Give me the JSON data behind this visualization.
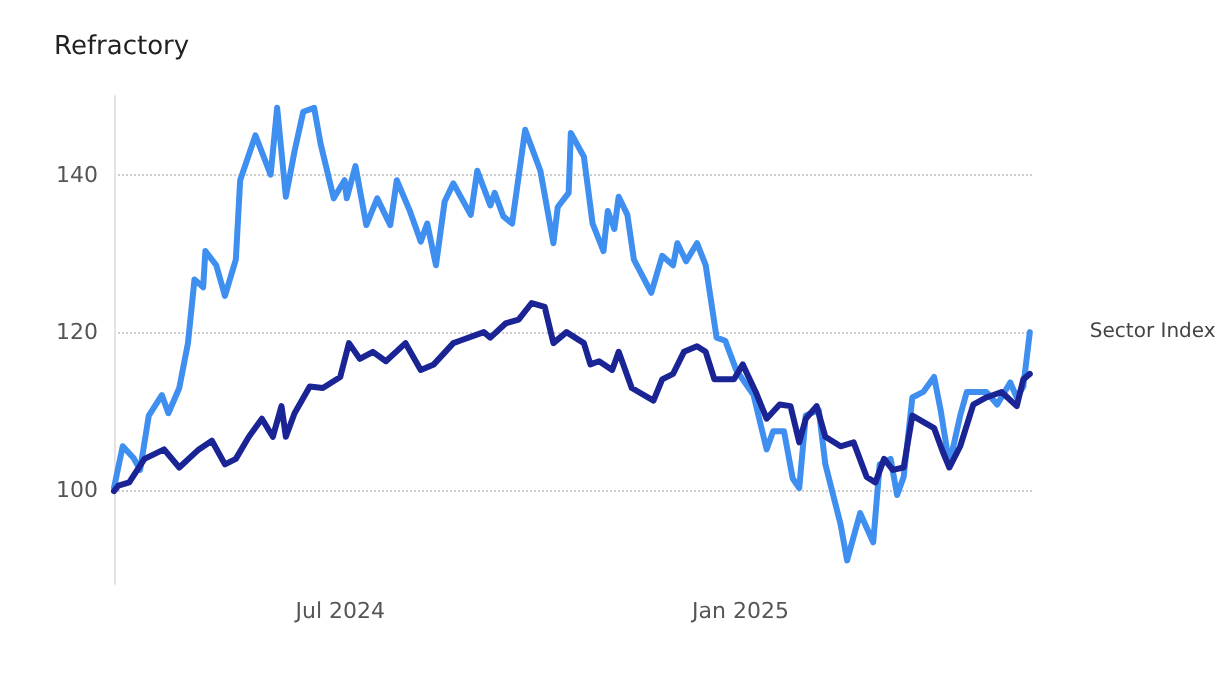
{
  "chart_data": {
    "type": "line",
    "title": "Refractory",
    "legend": false,
    "grid": "y",
    "line_style": "solid",
    "marker": "none",
    "xlim": [
      "2024-03-19",
      "2025-05-15"
    ],
    "xticks": [
      {
        "value": "2024-07-01",
        "label": "Jul 2024"
      },
      {
        "value": "2025-01-01",
        "label": "Jan 2025"
      }
    ],
    "ylim": [
      88,
      150
    ],
    "yticks": [
      100,
      120,
      140
    ],
    "series": [
      {
        "name": "Sector Index",
        "color": "#3f8ff0",
        "x": [
          "2024-03-19",
          "2024-03-23",
          "2024-03-28",
          "2024-03-31",
          "2024-04-04",
          "2024-04-10",
          "2024-04-13",
          "2024-04-18",
          "2024-04-22",
          "2024-04-25",
          "2024-04-29",
          "2024-04-30",
          "2024-05-05",
          "2024-05-09",
          "2024-05-14",
          "2024-05-16",
          "2024-05-23",
          "2024-05-30",
          "2024-06-02",
          "2024-06-06",
          "2024-06-10",
          "2024-06-14",
          "2024-06-19",
          "2024-06-22",
          "2024-06-28",
          "2024-07-03",
          "2024-07-04",
          "2024-07-08",
          "2024-07-13",
          "2024-07-18",
          "2024-07-24",
          "2024-07-27",
          "2024-08-02",
          "2024-08-07",
          "2024-08-10",
          "2024-08-14",
          "2024-08-18",
          "2024-08-22",
          "2024-08-30",
          "2024-09-02",
          "2024-09-08",
          "2024-09-10",
          "2024-09-14",
          "2024-09-18",
          "2024-09-24",
          "2024-10-01",
          "2024-10-07",
          "2024-10-09",
          "2024-10-14",
          "2024-10-15",
          "2024-10-21",
          "2024-10-25",
          "2024-10-30",
          "2024-11-01",
          "2024-11-04",
          "2024-11-06",
          "2024-11-10",
          "2024-11-13",
          "2024-11-21",
          "2024-11-26",
          "2024-12-01",
          "2024-12-03",
          "2024-12-07",
          "2024-12-12",
          "2024-12-16",
          "2024-12-21",
          "2024-12-25",
          "2024-12-30",
          "2025-01-07",
          "2025-01-13",
          "2025-01-16",
          "2025-01-21",
          "2025-01-25",
          "2025-01-28",
          "2025-01-31",
          "2025-02-06",
          "2025-02-09",
          "2025-02-16",
          "2025-02-19",
          "2025-02-25",
          "2025-03-03",
          "2025-03-06",
          "2025-03-11",
          "2025-03-14",
          "2025-03-17",
          "2025-03-21",
          "2025-03-26",
          "2025-03-31",
          "2025-04-03",
          "2025-04-07",
          "2025-04-12",
          "2025-04-15",
          "2025-04-24",
          "2025-04-29",
          "2025-05-05",
          "2025-05-08",
          "2025-05-11",
          "2025-05-14"
        ],
        "values": [
          100.2,
          105.5,
          104,
          102.5,
          109.4,
          112,
          109.7,
          112.9,
          118.6,
          126.7,
          125.7,
          130.3,
          128.5,
          124.6,
          129.2,
          139.3,
          145,
          140,
          148.5,
          137.2,
          143,
          148,
          148.5,
          143.9,
          137,
          139.3,
          137,
          141.1,
          133.6,
          137,
          133.6,
          139.3,
          135.4,
          131.5,
          133.8,
          128.5,
          136.6,
          138.9,
          134.9,
          140.5,
          136.1,
          137.7,
          134.7,
          133.8,
          145.7,
          140.5,
          131.3,
          135.9,
          137.7,
          145.3,
          142.3,
          133.8,
          130.3,
          135.4,
          133.1,
          137.2,
          134.9,
          129.2,
          125,
          129.7,
          128.5,
          131.3,
          129,
          131.3,
          128.5,
          119.3,
          118.9,
          115.2,
          112,
          105.1,
          107.4,
          107.4,
          101.4,
          100.2,
          109.4,
          110.1,
          103.2,
          95.6,
          91,
          97,
          93.3,
          103.2,
          103.9,
          99.3,
          101.6,
          111.7,
          112.4,
          114.3,
          110.1,
          103.2,
          109.4,
          112.4,
          112.4,
          110.8,
          113.6,
          111.7,
          113.1,
          120
        ]
      },
      {
        "color": "#1a2494",
        "x": [
          "2024-03-19",
          "2024-03-21",
          "2024-03-26",
          "2024-04-02",
          "2024-04-11",
          "2024-04-18",
          "2024-04-27",
          "2024-05-03",
          "2024-05-09",
          "2024-05-14",
          "2024-05-20",
          "2024-05-26",
          "2024-05-31",
          "2024-06-04",
          "2024-06-06",
          "2024-06-10",
          "2024-06-17",
          "2024-06-23",
          "2024-07-01",
          "2024-07-05",
          "2024-07-10",
          "2024-07-16",
          "2024-07-22",
          "2024-07-31",
          "2024-08-07",
          "2024-08-13",
          "2024-08-22",
          "2024-08-25",
          "2024-09-05",
          "2024-09-08",
          "2024-09-15",
          "2024-09-21",
          "2024-09-27",
          "2024-10-03",
          "2024-10-07",
          "2024-10-13",
          "2024-10-21",
          "2024-10-24",
          "2024-10-28",
          "2024-11-03",
          "2024-11-06",
          "2024-11-12",
          "2024-11-22",
          "2024-11-26",
          "2024-12-01",
          "2024-12-06",
          "2024-12-12",
          "2024-12-16",
          "2024-12-20",
          "2024-12-29",
          "2025-01-02",
          "2025-01-08",
          "2025-01-13",
          "2025-01-19",
          "2025-01-24",
          "2025-01-28",
          "2025-01-31",
          "2025-02-05",
          "2025-02-09",
          "2025-02-16",
          "2025-02-22",
          "2025-02-28",
          "2025-03-04",
          "2025-03-08",
          "2025-03-12",
          "2025-03-17",
          "2025-03-21",
          "2025-03-31",
          "2025-04-04",
          "2025-04-07",
          "2025-04-12",
          "2025-04-18",
          "2025-04-24",
          "2025-05-01",
          "2025-05-08",
          "2025-05-11",
          "2025-05-14"
        ],
        "values": [
          99.8,
          100.5,
          100.9,
          103.9,
          105.1,
          102.8,
          105.1,
          106.2,
          103.2,
          103.9,
          106.7,
          109,
          106.7,
          110.6,
          106.7,
          109.7,
          113.1,
          112.9,
          114.3,
          118.6,
          116.6,
          117.5,
          116.3,
          118.6,
          115.2,
          115.9,
          118.6,
          118.9,
          120,
          119.3,
          121.1,
          121.6,
          123.7,
          123.2,
          118.6,
          120,
          118.6,
          115.9,
          116.3,
          115.2,
          117.5,
          112.9,
          111.3,
          114,
          114.7,
          117.5,
          118.2,
          117.5,
          114,
          114,
          115.9,
          112.4,
          109,
          110.8,
          110.6,
          106,
          109,
          110.6,
          106.7,
          105.5,
          106,
          101.6,
          100.9,
          103.9,
          102.5,
          102.8,
          109.4,
          107.8,
          104.8,
          102.8,
          105.5,
          110.8,
          111.7,
          112.4,
          110.6,
          114,
          114.7
        ]
      }
    ]
  }
}
